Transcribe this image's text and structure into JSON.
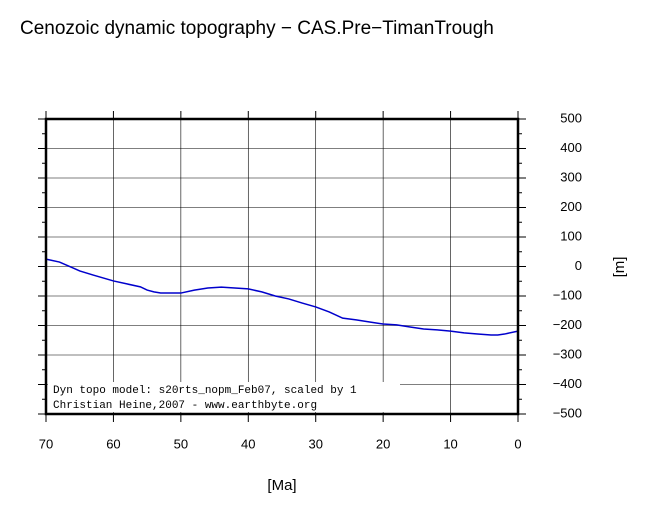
{
  "chart_data": {
    "type": "line",
    "title": "Cenozoic dynamic topography − CAS.Pre−TimanTrough",
    "x_label": "[Ma]",
    "y_label": "[m]",
    "annotations": [
      "Dyn topo model: s20rts_nopm_Feb07, scaled by 1",
      "Christian Heine,2007 - www.earthbyte.org"
    ],
    "x": [
      70,
      68,
      66,
      65,
      63,
      60,
      58,
      56,
      55,
      54,
      53,
      50,
      48,
      46,
      44,
      42,
      40,
      38,
      36,
      34,
      32,
      30,
      28,
      26,
      24,
      22,
      20,
      18,
      16,
      14,
      12,
      10,
      8,
      6,
      4,
      3,
      2,
      0
    ],
    "series": [
      {
        "color": "#0000cc",
        "values": [
          25,
          15,
          -5,
          -15,
          -29,
          -49,
          -59,
          -69,
          -80,
          -86,
          -90,
          -90,
          -80,
          -73,
          -70,
          -73,
          -76,
          -86,
          -100,
          -110,
          -124,
          -137,
          -154,
          -175,
          -181,
          -188,
          -195,
          -198,
          -205,
          -212,
          -215,
          -219,
          -225,
          -229,
          -232,
          -232,
          -229,
          -219
        ]
      }
    ],
    "xlim": [
      70,
      0
    ],
    "xticks": [
      70,
      60,
      50,
      40,
      30,
      20,
      10,
      0
    ],
    "ylim": [
      -500,
      500
    ],
    "yticks": [
      500,
      400,
      300,
      200,
      100,
      0,
      {
        "value": -100,
        "label": "−100"
      },
      {
        "value": -200,
        "label": "−200"
      },
      {
        "value": -300,
        "label": "−300"
      },
      {
        "value": -400,
        "label": "−400"
      },
      {
        "value": -500,
        "label": "−500"
      }
    ],
    "grid": true
  }
}
